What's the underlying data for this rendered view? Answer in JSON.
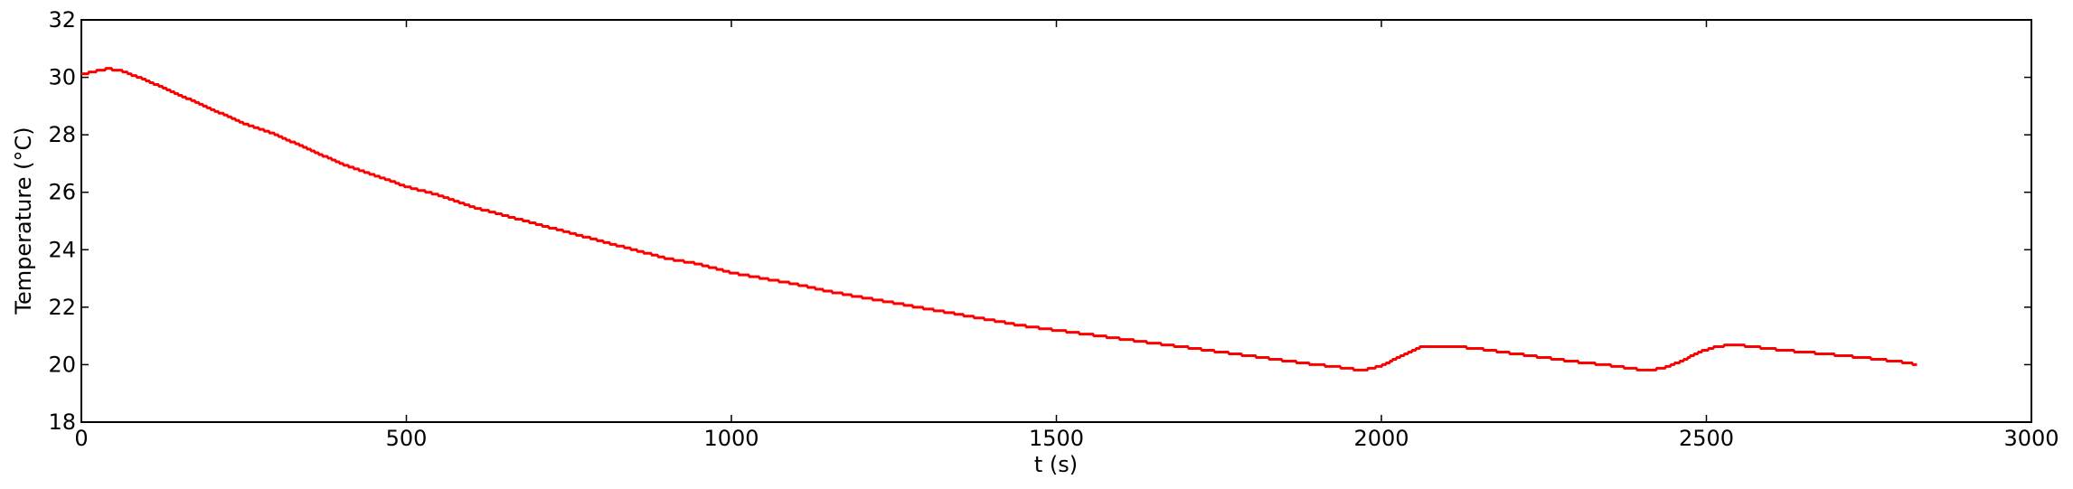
{
  "chart_data": {
    "type": "line",
    "title": "",
    "xlabel": "t (s)",
    "ylabel": "Temperature (°C)",
    "xlim": [
      0,
      3000
    ],
    "ylim": [
      18,
      32
    ],
    "xticks": [
      0,
      500,
      1000,
      1500,
      2000,
      2500,
      3000
    ],
    "yticks": [
      18,
      20,
      22,
      24,
      26,
      28,
      30,
      32
    ],
    "xtick_labels": [
      "0",
      "500",
      "1000",
      "1500",
      "2000",
      "2500",
      "3000"
    ],
    "ytick_labels": [
      "18",
      "20",
      "22",
      "24",
      "26",
      "28",
      "30",
      "32"
    ],
    "grid": false,
    "legend": "none",
    "series": [
      {
        "color": "#ff0000",
        "x": [
          0,
          20,
          40,
          60,
          100,
          150,
          200,
          250,
          300,
          350,
          400,
          450,
          500,
          550,
          600,
          650,
          700,
          750,
          800,
          850,
          900,
          950,
          1000,
          1050,
          1100,
          1150,
          1200,
          1250,
          1300,
          1350,
          1400,
          1450,
          1500,
          1550,
          1600,
          1650,
          1700,
          1750,
          1800,
          1850,
          1900,
          1940,
          1970,
          2000,
          2030,
          2060,
          2090,
          2120,
          2150,
          2200,
          2250,
          2300,
          2350,
          2400,
          2430,
          2460,
          2490,
          2520,
          2550,
          2580,
          2620,
          2680,
          2740,
          2800,
          2825
        ],
        "y": [
          30.1,
          30.2,
          30.3,
          30.25,
          29.9,
          29.4,
          28.9,
          28.4,
          28.0,
          27.5,
          27.0,
          26.6,
          26.2,
          25.9,
          25.5,
          25.2,
          24.9,
          24.6,
          24.3,
          24.0,
          23.7,
          23.5,
          23.2,
          23.0,
          22.8,
          22.55,
          22.35,
          22.15,
          21.95,
          21.75,
          21.55,
          21.35,
          21.2,
          21.05,
          20.9,
          20.75,
          20.6,
          20.45,
          20.3,
          20.15,
          20.0,
          19.9,
          19.8,
          19.95,
          20.3,
          20.6,
          20.65,
          20.62,
          20.55,
          20.4,
          20.25,
          20.1,
          19.98,
          19.82,
          19.85,
          20.1,
          20.45,
          20.65,
          20.68,
          20.6,
          20.5,
          20.38,
          20.25,
          20.1,
          20.0
        ]
      }
    ]
  }
}
